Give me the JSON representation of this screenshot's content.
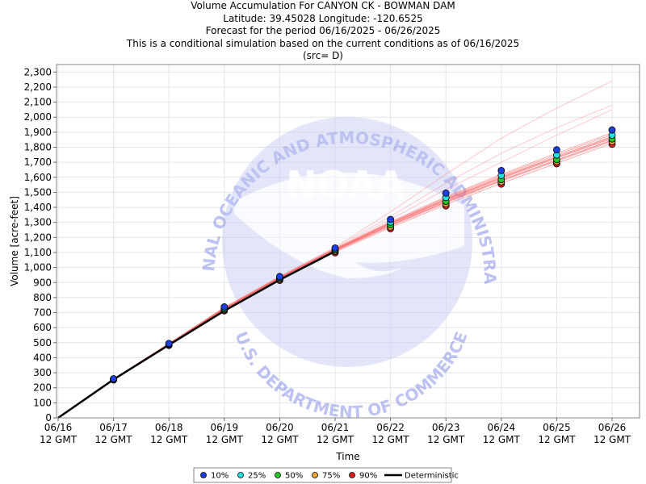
{
  "chart_data": {
    "type": "line",
    "title": "Volume Accumulation For CANYON CK - BOWMAN DAM",
    "subtitles": [
      "Latitude: 39.45028 Longitude: -120.6525",
      "Forecast for the period 06/16/2025 - 06/26/2025",
      "This is a conditional simulation based on the current conditions as of 06/16/2025",
      "(src= D)"
    ],
    "xlabel": "Time",
    "ylabel": "Volume [acre-feet]",
    "ylim": [
      0,
      2350
    ],
    "yticks": [
      0,
      100,
      200,
      300,
      400,
      500,
      600,
      700,
      800,
      900,
      1000,
      1100,
      1200,
      1300,
      1400,
      1500,
      1600,
      1700,
      1800,
      1900,
      2000,
      2100,
      2200,
      2300
    ],
    "ytick_labels": [
      "0",
      "100",
      "200",
      "300",
      "400",
      "500",
      "600",
      "700",
      "800",
      "900",
      "1,000",
      "1,100",
      "1,200",
      "1,300",
      "1,400",
      "1,500",
      "1,600",
      "1,700",
      "1,800",
      "1,900",
      "2,000",
      "2,100",
      "2,200",
      "2,300"
    ],
    "x": [
      "06/16",
      "06/17",
      "06/18",
      "06/19",
      "06/20",
      "06/21",
      "06/22",
      "06/23",
      "06/24",
      "06/25",
      "06/26"
    ],
    "x_sublabel": "12 GMT",
    "grid": true,
    "legend_position": "bottom",
    "deterministic": {
      "name": "Deterministic",
      "color": "#000000",
      "values": [
        0,
        255,
        485,
        712,
        918,
        1108
      ]
    },
    "series": [
      {
        "name": "10%",
        "color": "#1f3fe0",
        "values": [
          null,
          260,
          495,
          738,
          940,
          1130,
          1320,
          1495,
          1645,
          1783,
          1915
        ]
      },
      {
        "name": "25%",
        "color": "#22e0e0",
        "values": [
          null,
          258,
          492,
          730,
          934,
          1122,
          1302,
          1465,
          1612,
          1748,
          1880
        ]
      },
      {
        "name": "50%",
        "color": "#22cc22",
        "values": [
          null,
          256,
          489,
          724,
          928,
          1115,
          1285,
          1440,
          1585,
          1718,
          1855
        ]
      },
      {
        "name": "75%",
        "color": "#f0a830",
        "values": [
          null,
          254,
          486,
          718,
          922,
          1108,
          1270,
          1425,
          1570,
          1705,
          1838
        ]
      },
      {
        "name": "90%",
        "color": "#e02020",
        "values": [
          null,
          252,
          482,
          712,
          915,
          1098,
          1258,
          1410,
          1555,
          1690,
          1820
        ]
      }
    ],
    "ensemble_color": "#ff6666",
    "ensemble_traces": [
      [
        0,
        256,
        490,
        725,
        930,
        1118,
        1290,
        1448,
        1595,
        1730,
        1862
      ],
      [
        0,
        256,
        489,
        722,
        926,
        1114,
        1282,
        1438,
        1582,
        1716,
        1848
      ],
      [
        0,
        257,
        491,
        727,
        932,
        1120,
        1296,
        1456,
        1604,
        1740,
        1872
      ],
      [
        0,
        255,
        487,
        720,
        923,
        1110,
        1276,
        1430,
        1574,
        1708,
        1840
      ],
      [
        0,
        258,
        493,
        731,
        936,
        1124,
        1305,
        1470,
        1620,
        1760,
        1896
      ],
      [
        0,
        254,
        485,
        716,
        919,
        1104,
        1266,
        1418,
        1560,
        1694,
        1826
      ],
      [
        0,
        256,
        490,
        724,
        929,
        1117,
        1288,
        1446,
        1592,
        1728,
        1858
      ],
      [
        0,
        257,
        492,
        728,
        933,
        1122,
        1300,
        1462,
        1612,
        1750,
        1884
      ],
      [
        0,
        255,
        488,
        721,
        925,
        1112,
        1280,
        1436,
        1580,
        1714,
        1846
      ],
      [
        0,
        256,
        491,
        726,
        931,
        1119,
        1294,
        1452,
        1600,
        1736,
        1868
      ],
      [
        0,
        258,
        494,
        733,
        938,
        1130,
        1340,
        1560,
        1760,
        1930,
        2080
      ],
      [
        0,
        259,
        496,
        736,
        941,
        1135,
        1370,
        1620,
        1860,
        2060,
        2240
      ],
      [
        0,
        257,
        492,
        729,
        934,
        1125,
        1320,
        1520,
        1700,
        1880,
        2050
      ]
    ],
    "legend": [
      {
        "label": "10%",
        "color": "#1f3fe0",
        "kind": "marker"
      },
      {
        "label": "25%",
        "color": "#22e0e0",
        "kind": "marker"
      },
      {
        "label": "50%",
        "color": "#22cc22",
        "kind": "marker"
      },
      {
        "label": "75%",
        "color": "#f0a830",
        "kind": "marker"
      },
      {
        "label": "90%",
        "color": "#e02020",
        "kind": "marker"
      },
      {
        "label": "Deterministic",
        "color": "#000000",
        "kind": "line"
      }
    ]
  },
  "watermark": {
    "name": "noaa-logo",
    "word": "NOAA",
    "arc_top": "NATIONAL OCEANIC AND ATMOSPHERIC ADMINISTRATION",
    "arc_bottom": "U.S. DEPARTMENT OF COMMERCE",
    "color": "#7b86e6"
  }
}
